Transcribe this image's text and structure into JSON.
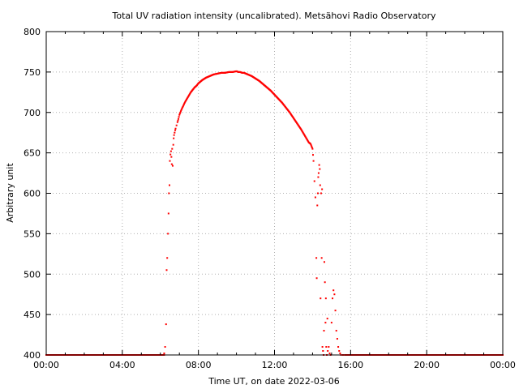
{
  "chart_data": {
    "type": "scatter",
    "title": "Total UV radiation intensity (uncalibrated). Metsähovi Radio Observatory",
    "xlabel": "Time UT, on date 2022-03-06",
    "ylabel": "Arbitrary unit",
    "xlim": [
      "00:00",
      "24:00"
    ],
    "ylim": [
      400,
      800
    ],
    "xticks": [
      "00:00",
      "04:00",
      "08:00",
      "12:00",
      "16:00",
      "20:00",
      "00:00"
    ],
    "yticks": [
      400,
      450,
      500,
      550,
      600,
      650,
      700,
      750,
      800
    ],
    "grid": true,
    "point_color": "#ff0000",
    "series": [
      {
        "x_hours": [
          6.2,
          6.25,
          6.3,
          6.33,
          6.36,
          6.4,
          6.43,
          6.45,
          6.48,
          6.5,
          6.53,
          6.56,
          6.58,
          6.6,
          6.62,
          6.65,
          6.68,
          6.7,
          6.72,
          6.75,
          6.78,
          6.8,
          6.85,
          6.9,
          6.95,
          7.0,
          7.1,
          7.2,
          7.3,
          7.4,
          7.5,
          7.6,
          7.7,
          7.8,
          7.9,
          8.0,
          8.2,
          8.4,
          8.6,
          8.8,
          9.0,
          9.2,
          9.4,
          9.6,
          9.8,
          10.0,
          10.1,
          10.2,
          10.3,
          10.4,
          10.5,
          10.6,
          10.7,
          10.8,
          11.0,
          11.2,
          11.4,
          11.6,
          11.8,
          12.0,
          12.2,
          12.4,
          12.6,
          12.8,
          13.0,
          13.2,
          13.4,
          13.5,
          13.6,
          13.7,
          13.8,
          13.9,
          14.0,
          14.05,
          14.1,
          14.15,
          14.2,
          14.22,
          14.25,
          14.28,
          14.3,
          14.32,
          14.35,
          14.38,
          14.4,
          14.42,
          14.45,
          14.48,
          14.5,
          14.52,
          14.55,
          14.58,
          14.6,
          14.62,
          14.65,
          14.68,
          14.7,
          14.72,
          14.75,
          14.78,
          14.8,
          14.85,
          14.9,
          14.95,
          15.0,
          15.05,
          15.1,
          15.15,
          15.2,
          15.25,
          15.3,
          15.35,
          15.4,
          15.45,
          15.5,
          15.6,
          15.7
        ],
        "y_values": [
          402,
          410,
          438,
          505,
          520,
          550,
          575,
          600,
          610,
          640,
          648,
          652,
          645,
          636,
          655,
          634,
          660,
          668,
          672,
          675,
          678,
          680,
          684,
          688,
          692,
          697,
          703,
          708,
          713,
          717,
          721,
          725,
          728,
          731,
          733,
          736,
          740,
          743,
          745,
          747,
          748,
          749,
          749,
          750,
          750,
          751,
          750,
          750,
          749,
          749,
          748,
          747,
          746,
          745,
          742,
          739,
          735,
          731,
          727,
          722,
          717,
          712,
          706,
          700,
          693,
          686,
          679,
          675,
          671,
          667,
          663,
          661,
          655,
          640,
          615,
          595,
          520,
          495,
          585,
          600,
          620,
          625,
          635,
          630,
          610,
          470,
          600,
          520,
          605,
          410,
          405,
          400,
          430,
          515,
          490,
          440,
          470,
          410,
          400,
          445,
          405,
          410,
          402,
          400,
          440,
          470,
          480,
          475,
          455,
          430,
          420,
          410,
          405,
          402,
          400,
          400,
          400
        ],
        "baseline_value": 400,
        "baseline_spans_hours": [
          [
            0.0,
            6.2
          ],
          [
            15.7,
            24.0
          ]
        ]
      }
    ]
  }
}
